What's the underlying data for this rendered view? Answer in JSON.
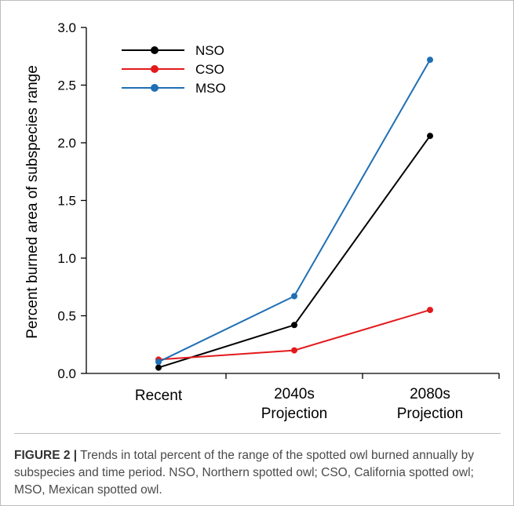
{
  "chart_data": {
    "type": "line",
    "categories": [
      "Recent",
      "2040s\nProjection",
      "2080s\nProjection"
    ],
    "ylabel": "Percent burned area of subspecies range",
    "ylim": [
      0,
      3.0
    ],
    "yticks": [
      "0.0",
      "0.5",
      "1.0",
      "1.5",
      "2.0",
      "2.5",
      "3.0"
    ],
    "grid": false,
    "legend_position": "top-left",
    "series": [
      {
        "name": "NSO",
        "color": "#000000",
        "values": [
          0.05,
          0.42,
          2.06
        ]
      },
      {
        "name": "CSO",
        "color": "#e31a1c",
        "values": [
          0.12,
          0.2,
          0.55
        ]
      },
      {
        "name": "MSO",
        "color": "#1f6fb5",
        "values": [
          0.1,
          0.67,
          2.72
        ]
      }
    ]
  },
  "caption": {
    "label": "FIGURE 2",
    "separator": "|",
    "text": "Trends in total percent of the range of the spotted owl burned annually by subspecies and time period. NSO, Northern spotted owl; CSO, California spotted owl; MSO, Mexican spotted owl."
  }
}
